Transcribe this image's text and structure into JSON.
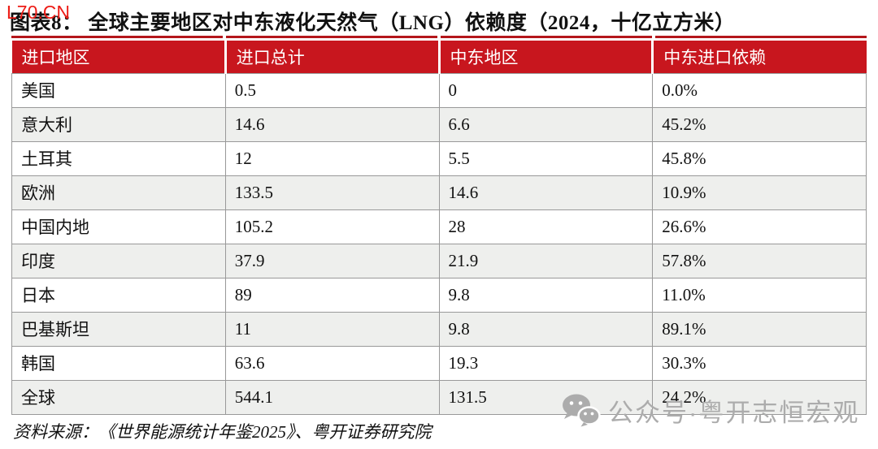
{
  "page": {
    "site_tag": "L70.CN"
  },
  "figure": {
    "title": "图表8： 全球主要地区对中东液化天然气（LNG）依赖度（2024，十亿立方米）",
    "source": "资料来源：《世界能源统计年鉴2025》、粤开证券研究院"
  },
  "table": {
    "headers": [
      "进口地区",
      "进口总计",
      "中东地区",
      "中东进口依赖"
    ],
    "rows": [
      [
        "美国",
        "0.5",
        "0",
        "0.0%"
      ],
      [
        "意大利",
        "14.6",
        "6.6",
        "45.2%"
      ],
      [
        "土耳其",
        "12",
        "5.5",
        "45.8%"
      ],
      [
        "欧洲",
        "133.5",
        "14.6",
        "10.9%"
      ],
      [
        "中国内地",
        "105.2",
        "28",
        "26.6%"
      ],
      [
        "印度",
        "37.9",
        "21.9",
        "57.8%"
      ],
      [
        "日本",
        "89",
        "9.8",
        "11.0%"
      ],
      [
        "巴基斯坦",
        "11",
        "9.8",
        "89.1%"
      ],
      [
        "韩国",
        "63.6",
        "19.3",
        "30.3%"
      ],
      [
        "全球",
        "544.1",
        "131.5",
        "24.2%"
      ]
    ]
  },
  "watermark": {
    "label": "公众号·粤开志恒宏观",
    "icon": "wechat-icon"
  },
  "colors": {
    "header_bg": "#c8161e",
    "stripe": "#eeefed",
    "accent_rule": "#b4161b",
    "site_tag": "#ed1c16",
    "watermark": "#acacac",
    "border": "#999999"
  }
}
